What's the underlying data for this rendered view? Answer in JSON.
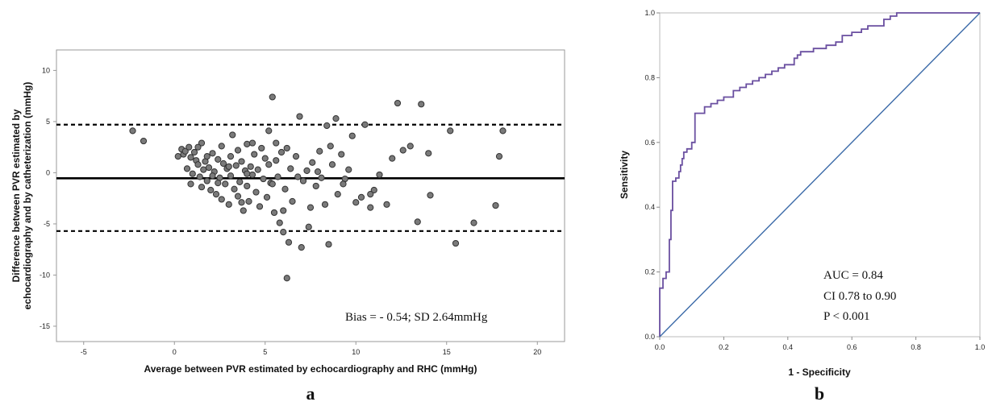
{
  "chart_data": [
    {
      "type": "scatter",
      "panel_label": "a",
      "xlabel": "Average between PVR estimated by echocardiography and RHC (mmHg)",
      "ylabel_lines": [
        "Difference between PVR estimated by",
        "echocardiography and by catheterization (mmHg)"
      ],
      "xlim": [
        -6.5,
        21.5
      ],
      "ylim": [
        -16.5,
        12
      ],
      "x_ticks": [
        -5,
        0,
        5,
        10,
        15,
        20
      ],
      "y_ticks": [
        10,
        5,
        0,
        -5,
        -10,
        -15
      ],
      "grid": false,
      "annotation": "Bias = - 0.54; SD 2.64mmHg",
      "lines": [
        {
          "name": "bias",
          "y": -0.54,
          "style": "solid"
        },
        {
          "name": "upper limit of agreement",
          "y": 4.7,
          "style": "dashed"
        },
        {
          "name": "lower limit of agreement",
          "y": -5.7,
          "style": "dashed"
        }
      ],
      "points": [
        [
          -2.3,
          4.1
        ],
        [
          -1.7,
          3.1
        ],
        [
          0.2,
          1.6
        ],
        [
          0.4,
          2.3
        ],
        [
          0.5,
          1.8
        ],
        [
          0.6,
          2.1
        ],
        [
          0.8,
          2.5
        ],
        [
          0.7,
          0.4
        ],
        [
          0.9,
          1.5
        ],
        [
          1.0,
          -0.1
        ],
        [
          1.1,
          2.0
        ],
        [
          1.2,
          1.2
        ],
        [
          1.3,
          0.8
        ],
        [
          1.4,
          -0.4
        ],
        [
          1.5,
          2.9
        ],
        [
          1.5,
          -1.4
        ],
        [
          1.6,
          0.3
        ],
        [
          1.7,
          1.1
        ],
        [
          1.8,
          -0.8
        ],
        [
          1.9,
          0.5
        ],
        [
          2.0,
          -1.7
        ],
        [
          2.1,
          1.9
        ],
        [
          2.2,
          0.1
        ],
        [
          2.3,
          -2.1
        ],
        [
          2.4,
          1.3
        ],
        [
          2.5,
          -0.5
        ],
        [
          2.6,
          2.6
        ],
        [
          2.6,
          -2.6
        ],
        [
          2.7,
          0.9
        ],
        [
          2.8,
          -1.1
        ],
        [
          2.9,
          0.4
        ],
        [
          3.0,
          -3.1
        ],
        [
          3.1,
          1.6
        ],
        [
          3.1,
          -0.3
        ],
        [
          3.2,
          3.7
        ],
        [
          3.3,
          -1.6
        ],
        [
          3.4,
          0.7
        ],
        [
          3.5,
          -2.3
        ],
        [
          3.5,
          2.2
        ],
        [
          3.6,
          -0.9
        ],
        [
          3.7,
          1.1
        ],
        [
          3.8,
          -3.7
        ],
        [
          3.9,
          0.2
        ],
        [
          4.0,
          -1.3
        ],
        [
          4.0,
          2.8
        ],
        [
          4.1,
          -2.8
        ],
        [
          4.2,
          0.6
        ],
        [
          4.3,
          -0.2
        ],
        [
          4.4,
          1.8
        ],
        [
          4.5,
          -1.9
        ],
        [
          4.6,
          0.3
        ],
        [
          4.7,
          -3.3
        ],
        [
          4.8,
          2.4
        ],
        [
          4.9,
          -0.6
        ],
        [
          5.0,
          1.4
        ],
        [
          5.1,
          -2.4
        ],
        [
          5.2,
          4.1
        ],
        [
          5.2,
          0.8
        ],
        [
          5.3,
          -1.0
        ],
        [
          5.4,
          7.4
        ],
        [
          5.5,
          -3.9
        ],
        [
          5.6,
          1.2
        ],
        [
          5.7,
          -0.4
        ],
        [
          5.8,
          -4.9
        ],
        [
          5.9,
          2.0
        ],
        [
          6.0,
          -5.8
        ],
        [
          6.1,
          -1.6
        ],
        [
          6.2,
          -10.3
        ],
        [
          6.3,
          -6.8
        ],
        [
          6.4,
          0.4
        ],
        [
          6.5,
          -2.8
        ],
        [
          6.7,
          1.6
        ],
        [
          6.9,
          5.5
        ],
        [
          7.0,
          -7.3
        ],
        [
          7.1,
          -0.8
        ],
        [
          7.3,
          0.2
        ],
        [
          7.5,
          -3.4
        ],
        [
          7.6,
          1.0
        ],
        [
          7.8,
          -1.3
        ],
        [
          8.0,
          2.1
        ],
        [
          8.1,
          -0.5
        ],
        [
          8.3,
          -3.1
        ],
        [
          8.4,
          4.6
        ],
        [
          8.5,
          -7.0
        ],
        [
          8.7,
          0.8
        ],
        [
          8.9,
          5.3
        ],
        [
          9.0,
          -2.1
        ],
        [
          9.2,
          1.8
        ],
        [
          9.4,
          -0.6
        ],
        [
          9.6,
          0.3
        ],
        [
          9.8,
          3.6
        ],
        [
          10.0,
          -2.9
        ],
        [
          10.3,
          -2.4
        ],
        [
          10.5,
          4.7
        ],
        [
          10.8,
          -3.4
        ],
        [
          11.0,
          -1.7
        ],
        [
          11.3,
          -0.2
        ],
        [
          11.7,
          -3.1
        ],
        [
          12.0,
          1.4
        ],
        [
          12.3,
          6.8
        ],
        [
          12.6,
          2.2
        ],
        [
          13.0,
          2.6
        ],
        [
          13.4,
          -4.8
        ],
        [
          13.6,
          6.7
        ],
        [
          14.0,
          1.9
        ],
        [
          14.1,
          -2.2
        ],
        [
          15.2,
          4.1
        ],
        [
          15.5,
          -6.9
        ],
        [
          16.5,
          -4.9
        ],
        [
          17.7,
          -3.2
        ],
        [
          17.9,
          1.6
        ],
        [
          18.1,
          4.1
        ],
        [
          2.4,
          -1.0
        ],
        [
          1.3,
          2.5
        ],
        [
          4.3,
          2.9
        ],
        [
          5.4,
          -1.1
        ],
        [
          6.8,
          -0.4
        ],
        [
          3.0,
          0.6
        ],
        [
          2.1,
          -0.3
        ],
        [
          7.4,
          -5.3
        ],
        [
          9.3,
          -1.1
        ],
        [
          10.8,
          -2.1
        ],
        [
          8.6,
          2.6
        ],
        [
          4.0,
          -0.1
        ],
        [
          3.7,
          -2.9
        ],
        [
          6.2,
          2.4
        ],
        [
          0.9,
          -1.1
        ],
        [
          5.6,
          2.9
        ],
        [
          1.8,
          1.6
        ],
        [
          7.9,
          0.1
        ],
        [
          6.0,
          -3.7
        ]
      ]
    },
    {
      "type": "line",
      "panel_label": "b",
      "xlabel": "1 - Specificity",
      "ylabel": "Sensitivity",
      "xlim": [
        0,
        1
      ],
      "ylim": [
        0,
        1
      ],
      "x_ticks": [
        "0.0",
        "0.2",
        "0.4",
        "0.6",
        "0.8",
        "1.0"
      ],
      "y_ticks": [
        "0.0",
        "0.2",
        "0.4",
        "0.6",
        "0.8",
        "1.0"
      ],
      "grid": false,
      "annotation_lines": [
        "AUC = 0.84",
        "CI 0.78 to 0.90",
        "P < 0.001"
      ],
      "series": [
        {
          "name": "ROC",
          "color": "#6a4fa0",
          "points": [
            [
              0.0,
              0.0
            ],
            [
              0.0,
              0.15
            ],
            [
              0.01,
              0.15
            ],
            [
              0.01,
              0.18
            ],
            [
              0.02,
              0.18
            ],
            [
              0.02,
              0.2
            ],
            [
              0.03,
              0.2
            ],
            [
              0.03,
              0.3
            ],
            [
              0.035,
              0.3
            ],
            [
              0.035,
              0.39
            ],
            [
              0.04,
              0.39
            ],
            [
              0.04,
              0.48
            ],
            [
              0.05,
              0.48
            ],
            [
              0.05,
              0.49
            ],
            [
              0.06,
              0.49
            ],
            [
              0.06,
              0.51
            ],
            [
              0.065,
              0.51
            ],
            [
              0.065,
              0.53
            ],
            [
              0.07,
              0.53
            ],
            [
              0.07,
              0.55
            ],
            [
              0.075,
              0.55
            ],
            [
              0.075,
              0.57
            ],
            [
              0.085,
              0.57
            ],
            [
              0.085,
              0.58
            ],
            [
              0.1,
              0.58
            ],
            [
              0.1,
              0.6
            ],
            [
              0.11,
              0.6
            ],
            [
              0.11,
              0.69
            ],
            [
              0.14,
              0.69
            ],
            [
              0.14,
              0.71
            ],
            [
              0.16,
              0.71
            ],
            [
              0.16,
              0.72
            ],
            [
              0.18,
              0.72
            ],
            [
              0.18,
              0.73
            ],
            [
              0.2,
              0.73
            ],
            [
              0.2,
              0.74
            ],
            [
              0.23,
              0.74
            ],
            [
              0.23,
              0.76
            ],
            [
              0.25,
              0.76
            ],
            [
              0.25,
              0.77
            ],
            [
              0.27,
              0.77
            ],
            [
              0.27,
              0.78
            ],
            [
              0.29,
              0.78
            ],
            [
              0.29,
              0.79
            ],
            [
              0.31,
              0.79
            ],
            [
              0.31,
              0.8
            ],
            [
              0.33,
              0.8
            ],
            [
              0.33,
              0.81
            ],
            [
              0.35,
              0.81
            ],
            [
              0.35,
              0.82
            ],
            [
              0.37,
              0.82
            ],
            [
              0.37,
              0.83
            ],
            [
              0.39,
              0.83
            ],
            [
              0.39,
              0.84
            ],
            [
              0.42,
              0.84
            ],
            [
              0.42,
              0.86
            ],
            [
              0.43,
              0.86
            ],
            [
              0.43,
              0.87
            ],
            [
              0.44,
              0.87
            ],
            [
              0.44,
              0.88
            ],
            [
              0.48,
              0.88
            ],
            [
              0.48,
              0.89
            ],
            [
              0.5,
              0.89
            ],
            [
              0.52,
              0.89
            ],
            [
              0.52,
              0.9
            ],
            [
              0.55,
              0.9
            ],
            [
              0.55,
              0.91
            ],
            [
              0.57,
              0.91
            ],
            [
              0.57,
              0.93
            ],
            [
              0.6,
              0.93
            ],
            [
              0.6,
              0.94
            ],
            [
              0.63,
              0.94
            ],
            [
              0.63,
              0.95
            ],
            [
              0.65,
              0.95
            ],
            [
              0.65,
              0.96
            ],
            [
              0.68,
              0.96
            ],
            [
              0.7,
              0.96
            ],
            [
              0.7,
              0.98
            ],
            [
              0.72,
              0.98
            ],
            [
              0.72,
              0.99
            ],
            [
              0.74,
              0.99
            ],
            [
              0.74,
              1.0
            ],
            [
              1.0,
              1.0
            ]
          ]
        },
        {
          "name": "reference",
          "color": "#3b6aa8",
          "points": [
            [
              0,
              0
            ],
            [
              1,
              1
            ]
          ]
        }
      ]
    }
  ]
}
